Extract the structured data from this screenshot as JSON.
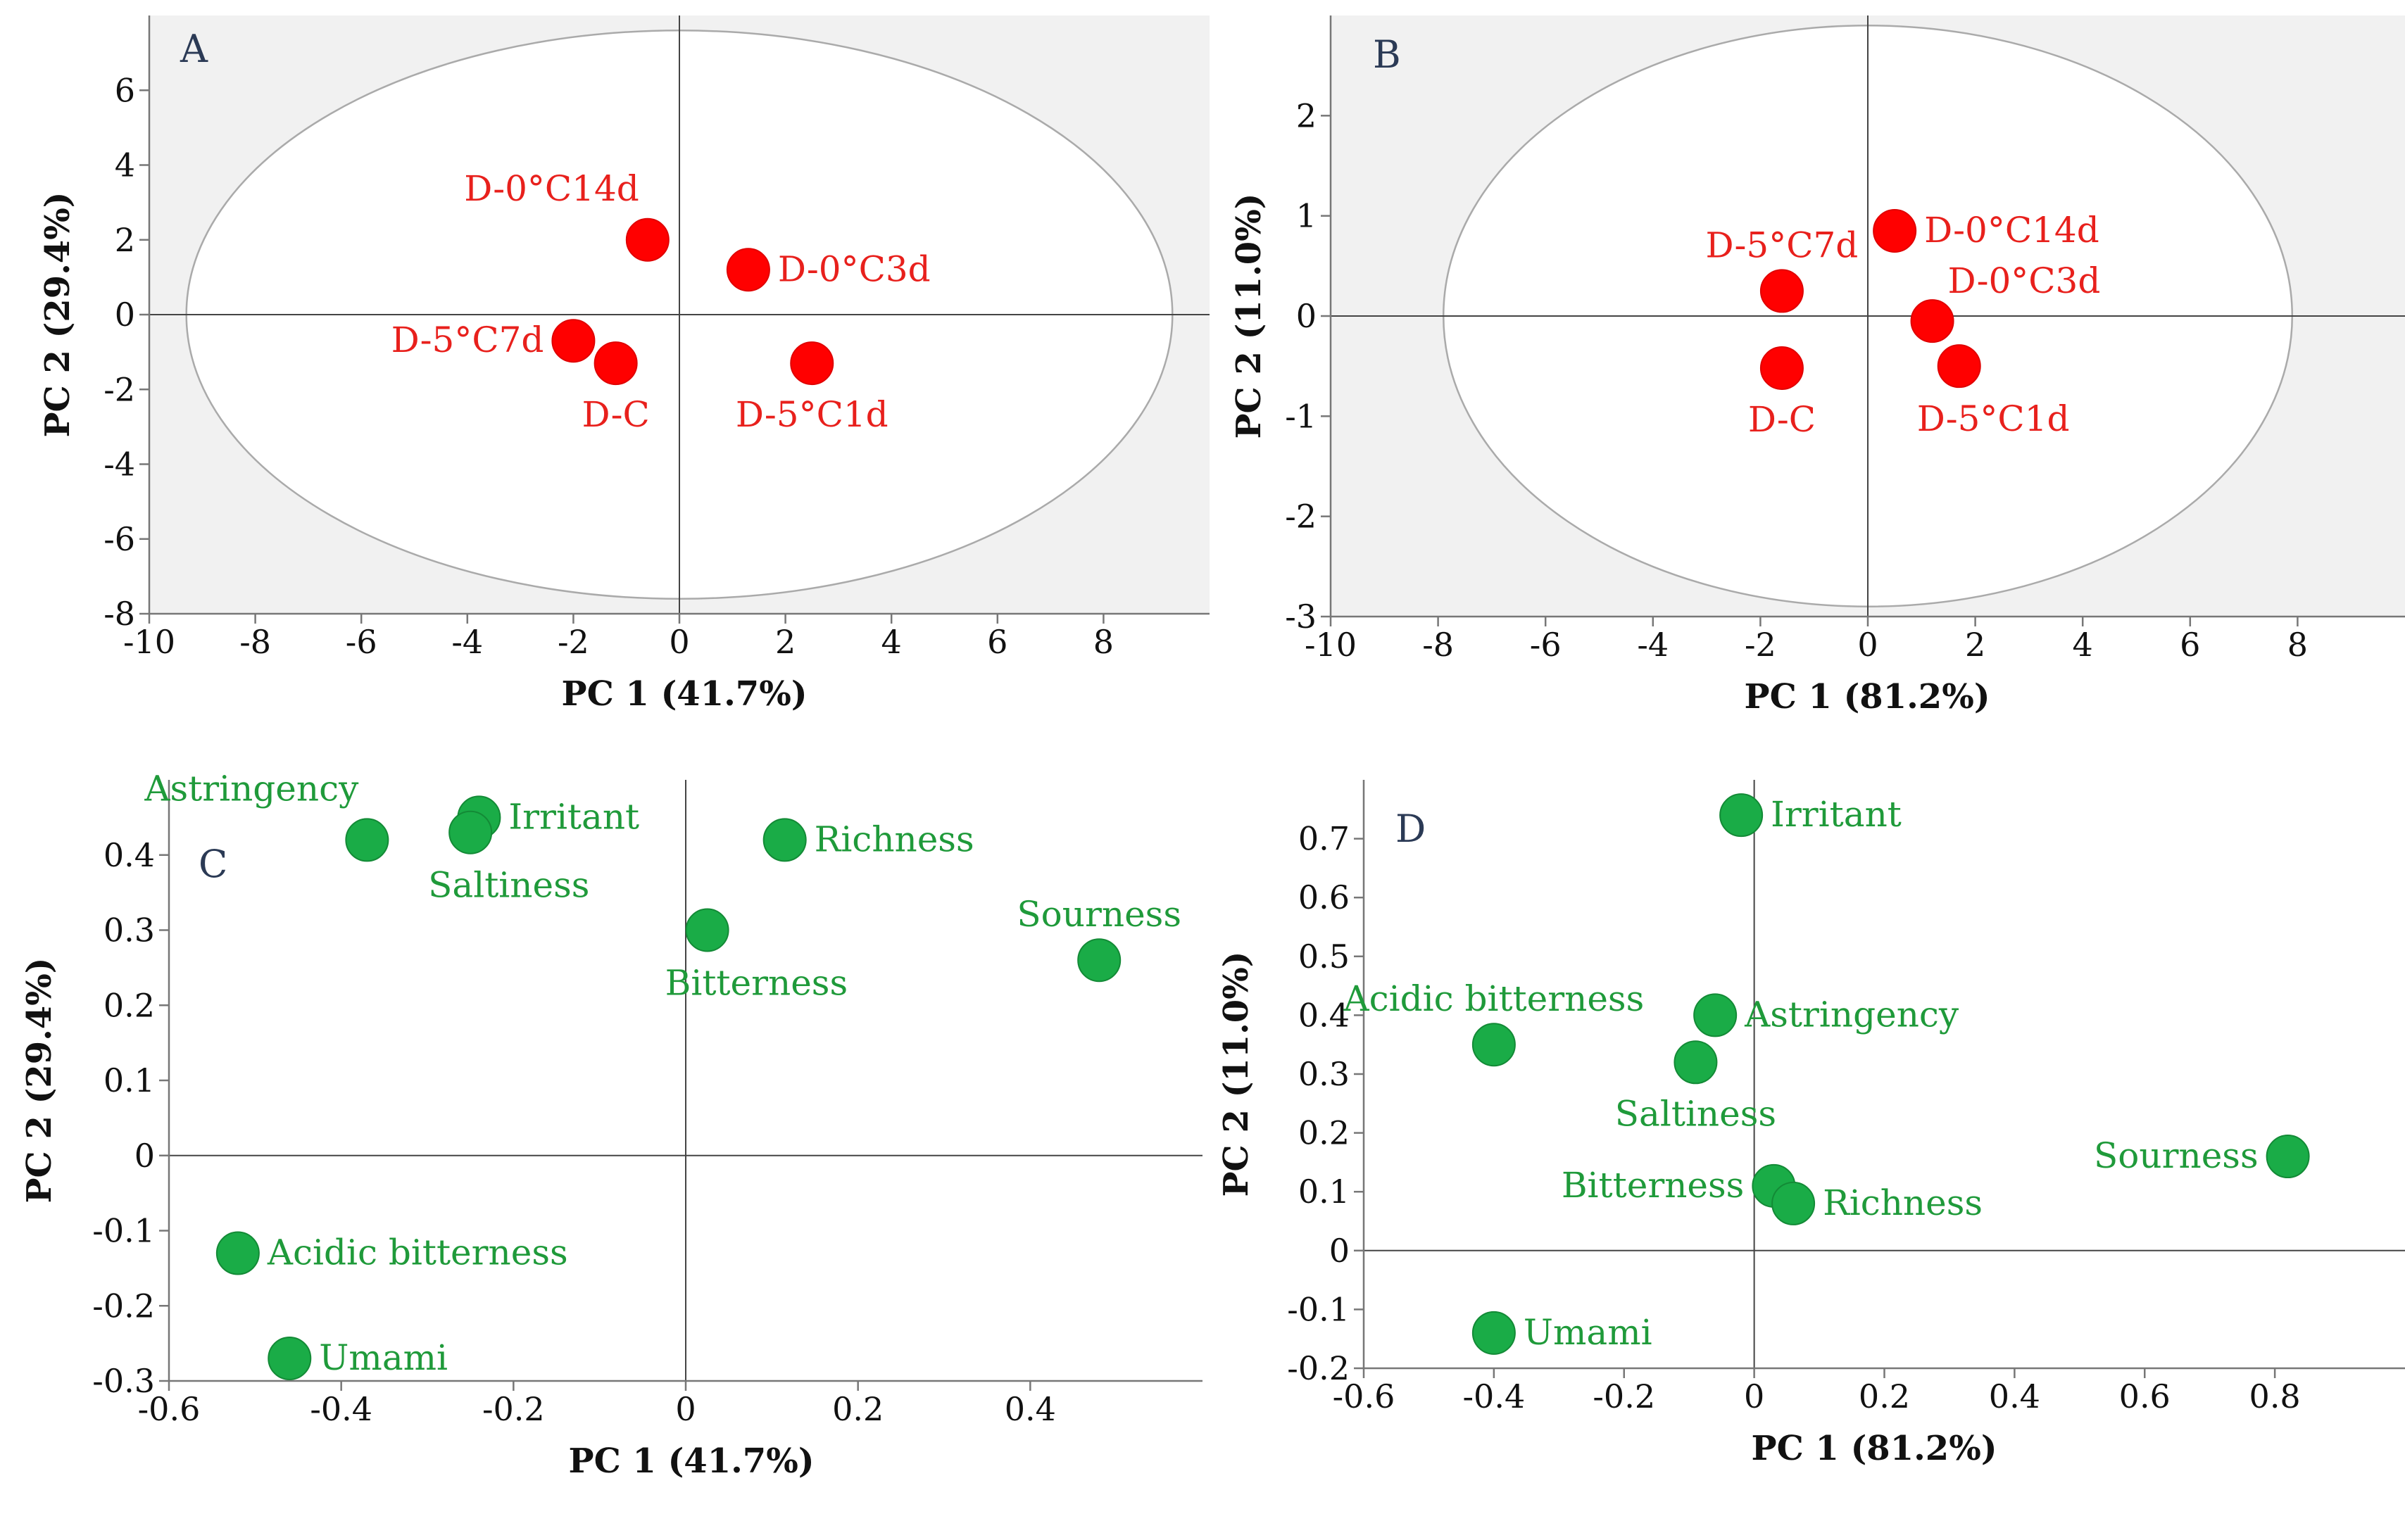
{
  "chart_data": [
    {
      "type": "scatter",
      "panel": "A",
      "xlabel": "PC 1 (41.7%)",
      "ylabel": "PC 2 (29.4%)",
      "xlim": [
        -10,
        10
      ],
      "ylim": [
        -8,
        8
      ],
      "xticks": [
        -10,
        -8,
        -6,
        -4,
        -2,
        0,
        2,
        4,
        6,
        8
      ],
      "yticks": [
        -8,
        -6,
        -4,
        -2,
        0,
        2,
        4,
        6
      ],
      "shaded_background": true,
      "ellipse": {
        "cx": 0,
        "cy": 0,
        "rx": 9.3,
        "ry": 7.6
      },
      "marker_color": "#ff0000",
      "label_color": "#e8201c",
      "points": [
        {
          "label": "D-0°C14d",
          "x": -0.6,
          "y": 2.0,
          "label_pos": "top-left"
        },
        {
          "label": "D-0°C3d",
          "x": 1.3,
          "y": 1.2,
          "label_pos": "right"
        },
        {
          "label": "D-5°C7d",
          "x": -2.0,
          "y": -0.7,
          "label_pos": "left"
        },
        {
          "label": "D-C",
          "x": -1.2,
          "y": -1.3,
          "label_pos": "bottom"
        },
        {
          "label": "D-5°C1d",
          "x": 2.5,
          "y": -1.3,
          "label_pos": "bottom"
        }
      ]
    },
    {
      "type": "scatter",
      "panel": "B",
      "xlabel": "PC 1 (81.2%)",
      "ylabel": "PC 2 (11.0%)",
      "xlim": [
        -10,
        10
      ],
      "ylim": [
        -3,
        3
      ],
      "xticks": [
        -10,
        -8,
        -6,
        -4,
        -2,
        0,
        2,
        4,
        6,
        8
      ],
      "yticks": [
        -3,
        -2,
        -1,
        0,
        1,
        2
      ],
      "shaded_background": true,
      "ellipse": {
        "cx": 0,
        "cy": 0,
        "rx": 7.9,
        "ry": 2.9
      },
      "marker_color": "#ff0000",
      "label_color": "#e8201c",
      "points": [
        {
          "label": "D-0°C14d",
          "x": 0.5,
          "y": 0.85,
          "label_pos": "right"
        },
        {
          "label": "D-5°C7d",
          "x": -1.6,
          "y": 0.25,
          "label_pos": "top"
        },
        {
          "label": "D-0°C3d",
          "x": 1.2,
          "y": -0.05,
          "label_pos": "top-right"
        },
        {
          "label": "D-C",
          "x": -1.6,
          "y": -0.52,
          "label_pos": "bottom"
        },
        {
          "label": "D-5°C1d",
          "x": 1.7,
          "y": -0.5,
          "label_pos": "bottom-right"
        }
      ]
    },
    {
      "type": "scatter",
      "panel": "C",
      "xlabel": "PC 1 (41.7%)",
      "ylabel": "PC 2 (29.4%)",
      "xlim": [
        -0.6,
        0.6
      ],
      "ylim": [
        -0.3,
        0.5
      ],
      "xticks": [
        -0.6,
        -0.4,
        -0.2,
        0,
        0.2,
        0.4
      ],
      "yticks": [
        -0.3,
        -0.2,
        -0.1,
        0,
        0.1,
        0.2,
        0.3,
        0.4
      ],
      "shaded_background": false,
      "marker_color": "#1aac47",
      "label_color": "#1f9a3a",
      "points": [
        {
          "label": "Astringency",
          "x": -0.37,
          "y": 0.42,
          "label_pos": "top-left"
        },
        {
          "label": "Irritant",
          "x": -0.24,
          "y": 0.45,
          "label_pos": "right"
        },
        {
          "label": "Saltiness",
          "x": -0.25,
          "y": 0.43,
          "label_pos": "bottom-right"
        },
        {
          "label": "Richness",
          "x": 0.115,
          "y": 0.42,
          "label_pos": "right"
        },
        {
          "label": "Bitterness",
          "x": 0.025,
          "y": 0.3,
          "label_pos": "bottom-right"
        },
        {
          "label": "Sourness",
          "x": 0.48,
          "y": 0.26,
          "label_pos": "top"
        },
        {
          "label": "Acidic bitterness",
          "x": -0.52,
          "y": -0.13,
          "label_pos": "right"
        },
        {
          "label": "Umami",
          "x": -0.46,
          "y": -0.27,
          "label_pos": "right"
        }
      ]
    },
    {
      "type": "scatter",
      "panel": "D",
      "xlabel": "PC 1 (81.2%)",
      "ylabel": "PC 2 (11.0%)",
      "xlim": [
        -0.6,
        1.0
      ],
      "ylim": [
        -0.2,
        0.8
      ],
      "xticks": [
        -0.6,
        -0.4,
        -0.2,
        0,
        0.2,
        0.4,
        0.6,
        0.8
      ],
      "yticks": [
        -0.2,
        -0.1,
        0,
        0.1,
        0.2,
        0.3,
        0.4,
        0.5,
        0.6,
        0.7
      ],
      "shaded_background": false,
      "marker_color": "#1aac47",
      "label_color": "#1f9a3a",
      "points": [
        {
          "label": "Irritant",
          "x": -0.02,
          "y": 0.74,
          "label_pos": "right"
        },
        {
          "label": "Acidic bitterness",
          "x": -0.4,
          "y": 0.35,
          "label_pos": "top"
        },
        {
          "label": "Astringency",
          "x": -0.06,
          "y": 0.4,
          "label_pos": "right"
        },
        {
          "label": "Saltiness",
          "x": -0.09,
          "y": 0.32,
          "label_pos": "bottom"
        },
        {
          "label": "Sourness",
          "x": 0.82,
          "y": 0.16,
          "label_pos": "left"
        },
        {
          "label": "Bitterness",
          "x": 0.03,
          "y": 0.11,
          "label_pos": "left"
        },
        {
          "label": "Richness",
          "x": 0.06,
          "y": 0.08,
          "label_pos": "right"
        },
        {
          "label": "Umami",
          "x": -0.4,
          "y": -0.14,
          "label_pos": "right"
        }
      ]
    }
  ]
}
